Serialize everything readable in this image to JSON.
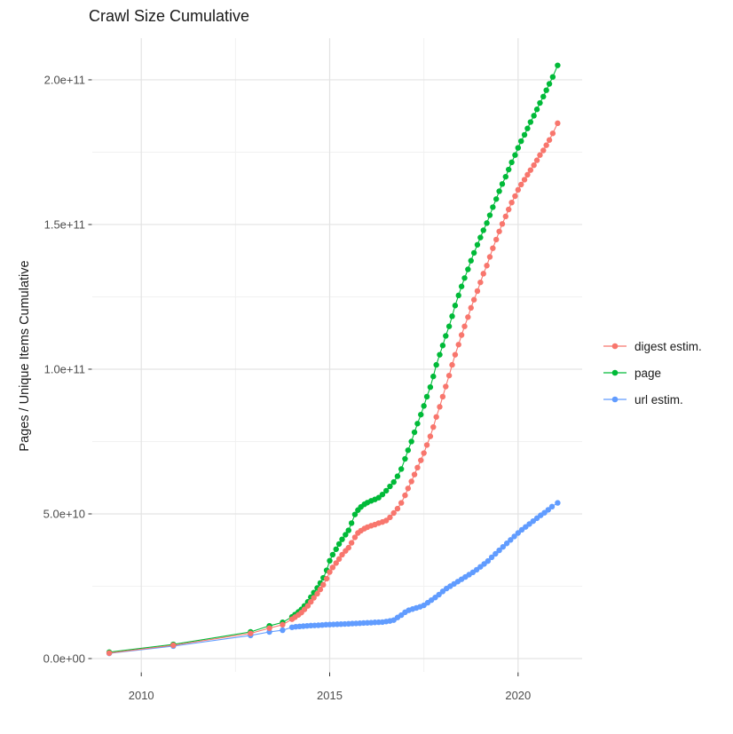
{
  "chart_data": {
    "type": "line",
    "title": "Crawl Size Cumulative",
    "xlabel": "",
    "ylabel": "Pages / Unique Items Cumulative",
    "values_unit": "billions (1e9); y axis labels use scientific notation",
    "grid": true,
    "legend_position": "right",
    "x_axis": {
      "range": [
        2008.7,
        2021.7
      ],
      "ticks": [
        {
          "label": "2010",
          "value": 2010
        },
        {
          "label": "2015",
          "value": 2015
        },
        {
          "label": "2020",
          "value": 2020
        }
      ],
      "minor": [
        2012.5,
        2017.5
      ]
    },
    "y_axis": {
      "range": [
        -4.6,
        214.4
      ],
      "ticks": [
        {
          "label": "0.0e+00",
          "value": 0
        },
        {
          "label": "5.0e+10",
          "value": 50
        },
        {
          "label": "1.0e+11",
          "value": 100
        },
        {
          "label": "1.5e+11",
          "value": 150
        },
        {
          "label": "2.0e+11",
          "value": 200
        }
      ],
      "minor": [
        25,
        75,
        125,
        175
      ]
    },
    "series": [
      {
        "name": "digest estim.",
        "color": "#F8766D",
        "points": [
          [
            2009.15,
            1.9
          ],
          [
            2010.85,
            4.6
          ],
          [
            2012.9,
            8.7
          ],
          [
            2013.4,
            10.5
          ],
          [
            2013.75,
            11.7
          ],
          [
            2014.0,
            13.6
          ],
          [
            2014.08,
            14.3
          ],
          [
            2014.17,
            15.1
          ],
          [
            2014.25,
            15.9
          ],
          [
            2014.33,
            17.0
          ],
          [
            2014.42,
            18.2
          ],
          [
            2014.5,
            19.6
          ],
          [
            2014.58,
            21.0
          ],
          [
            2014.67,
            22.4
          ],
          [
            2014.75,
            23.9
          ],
          [
            2014.83,
            25.5
          ],
          [
            2014.92,
            27.6
          ],
          [
            2015.0,
            29.9
          ],
          [
            2015.08,
            31.5
          ],
          [
            2015.17,
            33.0
          ],
          [
            2015.25,
            34.4
          ],
          [
            2015.33,
            35.9
          ],
          [
            2015.42,
            37.2
          ],
          [
            2015.5,
            38.3
          ],
          [
            2015.58,
            40.0
          ],
          [
            2015.67,
            41.9
          ],
          [
            2015.75,
            43.4
          ],
          [
            2015.83,
            44.2
          ],
          [
            2015.92,
            44.9
          ],
          [
            2016.0,
            45.4
          ],
          [
            2016.1,
            45.9
          ],
          [
            2016.2,
            46.3
          ],
          [
            2016.3,
            46.8
          ],
          [
            2016.4,
            47.2
          ],
          [
            2016.5,
            47.7
          ],
          [
            2016.6,
            48.8
          ],
          [
            2016.7,
            50.3
          ],
          [
            2016.8,
            51.8
          ],
          [
            2016.9,
            53.8
          ],
          [
            2017.0,
            56.4
          ],
          [
            2017.08,
            58.8
          ],
          [
            2017.17,
            61.2
          ],
          [
            2017.25,
            63.6
          ],
          [
            2017.33,
            66.0
          ],
          [
            2017.42,
            68.5
          ],
          [
            2017.5,
            71.0
          ],
          [
            2017.58,
            73.8
          ],
          [
            2017.67,
            76.8
          ],
          [
            2017.75,
            80.0
          ],
          [
            2017.83,
            83.5
          ],
          [
            2017.92,
            87.0
          ],
          [
            2018.0,
            90.5
          ],
          [
            2018.08,
            94.0
          ],
          [
            2018.17,
            97.8
          ],
          [
            2018.25,
            101.5
          ],
          [
            2018.33,
            105.0
          ],
          [
            2018.42,
            108.5
          ],
          [
            2018.5,
            111.8
          ],
          [
            2018.58,
            114.8
          ],
          [
            2018.67,
            118.0
          ],
          [
            2018.75,
            121.2
          ],
          [
            2018.83,
            124.0
          ],
          [
            2018.92,
            127.0
          ],
          [
            2019.0,
            130.0
          ],
          [
            2019.08,
            133.0
          ],
          [
            2019.17,
            135.8
          ],
          [
            2019.25,
            138.8
          ],
          [
            2019.33,
            141.8
          ],
          [
            2019.42,
            144.8
          ],
          [
            2019.5,
            147.6
          ],
          [
            2019.58,
            150.2
          ],
          [
            2019.67,
            152.8
          ],
          [
            2019.75,
            155.2
          ],
          [
            2019.83,
            157.6
          ],
          [
            2019.92,
            159.8
          ],
          [
            2020.0,
            162.0
          ],
          [
            2020.08,
            163.8
          ],
          [
            2020.17,
            165.5
          ],
          [
            2020.25,
            167.2
          ],
          [
            2020.33,
            168.8
          ],
          [
            2020.42,
            170.5
          ],
          [
            2020.5,
            172.2
          ],
          [
            2020.58,
            174.0
          ],
          [
            2020.67,
            175.6
          ],
          [
            2020.75,
            177.4
          ],
          [
            2020.83,
            179.2
          ],
          [
            2020.92,
            181.5
          ],
          [
            2021.05,
            185.0
          ]
        ]
      },
      {
        "name": "page",
        "color": "#00BA38",
        "points": [
          [
            2009.15,
            2.2
          ],
          [
            2010.85,
            4.9
          ],
          [
            2012.9,
            9.2
          ],
          [
            2013.4,
            11.3
          ],
          [
            2013.75,
            12.5
          ],
          [
            2014.0,
            14.4
          ],
          [
            2014.08,
            15.2
          ],
          [
            2014.17,
            16.1
          ],
          [
            2014.25,
            17.0
          ],
          [
            2014.33,
            18.2
          ],
          [
            2014.42,
            19.6
          ],
          [
            2014.5,
            21.2
          ],
          [
            2014.58,
            22.8
          ],
          [
            2014.67,
            24.4
          ],
          [
            2014.75,
            26.1
          ],
          [
            2014.83,
            27.9
          ],
          [
            2014.92,
            30.5
          ],
          [
            2015.0,
            33.8
          ],
          [
            2015.08,
            35.9
          ],
          [
            2015.17,
            37.8
          ],
          [
            2015.25,
            39.6
          ],
          [
            2015.33,
            41.2
          ],
          [
            2015.42,
            42.8
          ],
          [
            2015.5,
            44.3
          ],
          [
            2015.58,
            46.8
          ],
          [
            2015.67,
            49.8
          ],
          [
            2015.75,
            51.3
          ],
          [
            2015.83,
            52.4
          ],
          [
            2015.92,
            53.3
          ],
          [
            2016.0,
            53.9
          ],
          [
            2016.1,
            54.5
          ],
          [
            2016.2,
            55.0
          ],
          [
            2016.3,
            55.6
          ],
          [
            2016.4,
            56.7
          ],
          [
            2016.5,
            58.0
          ],
          [
            2016.6,
            59.5
          ],
          [
            2016.7,
            61.0
          ],
          [
            2016.8,
            63.0
          ],
          [
            2016.9,
            65.5
          ],
          [
            2017.0,
            69.0
          ],
          [
            2017.08,
            72.0
          ],
          [
            2017.17,
            75.0
          ],
          [
            2017.25,
            78.2
          ],
          [
            2017.33,
            81.2
          ],
          [
            2017.42,
            84.3
          ],
          [
            2017.5,
            87.3
          ],
          [
            2017.58,
            90.5
          ],
          [
            2017.67,
            93.8
          ],
          [
            2017.75,
            97.5
          ],
          [
            2017.83,
            101.5
          ],
          [
            2017.92,
            105.0
          ],
          [
            2018.0,
            108.2
          ],
          [
            2018.08,
            111.5
          ],
          [
            2018.17,
            114.8
          ],
          [
            2018.25,
            118.3
          ],
          [
            2018.33,
            122.0
          ],
          [
            2018.42,
            125.5
          ],
          [
            2018.5,
            128.6
          ],
          [
            2018.58,
            131.5
          ],
          [
            2018.67,
            134.5
          ],
          [
            2018.75,
            137.5
          ],
          [
            2018.83,
            140.2
          ],
          [
            2018.92,
            143.0
          ],
          [
            2019.0,
            145.5
          ],
          [
            2019.08,
            148.0
          ],
          [
            2019.17,
            150.5
          ],
          [
            2019.25,
            153.2
          ],
          [
            2019.33,
            156.0
          ],
          [
            2019.42,
            158.8
          ],
          [
            2019.5,
            161.5
          ],
          [
            2019.58,
            164.0
          ],
          [
            2019.67,
            166.5
          ],
          [
            2019.75,
            169.0
          ],
          [
            2019.83,
            171.5
          ],
          [
            2019.92,
            174.0
          ],
          [
            2020.0,
            176.5
          ],
          [
            2020.08,
            178.8
          ],
          [
            2020.17,
            181.0
          ],
          [
            2020.25,
            183.2
          ],
          [
            2020.33,
            185.4
          ],
          [
            2020.42,
            187.6
          ],
          [
            2020.5,
            189.8
          ],
          [
            2020.58,
            192.0
          ],
          [
            2020.67,
            194.2
          ],
          [
            2020.75,
            196.4
          ],
          [
            2020.83,
            198.6
          ],
          [
            2020.92,
            201.0
          ],
          [
            2021.05,
            205.0
          ]
        ]
      },
      {
        "name": "url estim.",
        "color": "#619CFF",
        "points": [
          [
            2009.15,
            1.8
          ],
          [
            2010.85,
            4.3
          ],
          [
            2012.9,
            8.0
          ],
          [
            2013.4,
            9.2
          ],
          [
            2013.75,
            9.8
          ],
          [
            2014.0,
            10.8
          ],
          [
            2014.1,
            11.0
          ],
          [
            2014.2,
            11.1
          ],
          [
            2014.3,
            11.2
          ],
          [
            2014.4,
            11.3
          ],
          [
            2014.5,
            11.4
          ],
          [
            2014.6,
            11.45
          ],
          [
            2014.7,
            11.5
          ],
          [
            2014.8,
            11.6
          ],
          [
            2014.9,
            11.7
          ],
          [
            2015.0,
            11.75
          ],
          [
            2015.1,
            11.8
          ],
          [
            2015.2,
            11.85
          ],
          [
            2015.3,
            11.9
          ],
          [
            2015.4,
            11.95
          ],
          [
            2015.5,
            12.0
          ],
          [
            2015.6,
            12.1
          ],
          [
            2015.7,
            12.15
          ],
          [
            2015.8,
            12.2
          ],
          [
            2015.9,
            12.3
          ],
          [
            2016.0,
            12.35
          ],
          [
            2016.1,
            12.4
          ],
          [
            2016.2,
            12.5
          ],
          [
            2016.3,
            12.55
          ],
          [
            2016.4,
            12.6
          ],
          [
            2016.5,
            12.8
          ],
          [
            2016.6,
            13.0
          ],
          [
            2016.7,
            13.3
          ],
          [
            2016.8,
            14.2
          ],
          [
            2016.9,
            15.0
          ],
          [
            2017.0,
            16.0
          ],
          [
            2017.1,
            16.7
          ],
          [
            2017.2,
            17.1
          ],
          [
            2017.3,
            17.5
          ],
          [
            2017.4,
            17.9
          ],
          [
            2017.5,
            18.4
          ],
          [
            2017.6,
            19.3
          ],
          [
            2017.7,
            20.2
          ],
          [
            2017.8,
            21.1
          ],
          [
            2017.9,
            22.1
          ],
          [
            2018.0,
            23.2
          ],
          [
            2018.1,
            24.2
          ],
          [
            2018.2,
            25.0
          ],
          [
            2018.3,
            25.8
          ],
          [
            2018.4,
            26.6
          ],
          [
            2018.5,
            27.4
          ],
          [
            2018.6,
            28.2
          ],
          [
            2018.7,
            29.0
          ],
          [
            2018.8,
            29.8
          ],
          [
            2018.9,
            30.7
          ],
          [
            2019.0,
            31.7
          ],
          [
            2019.1,
            32.7
          ],
          [
            2019.2,
            33.7
          ],
          [
            2019.3,
            35.0
          ],
          [
            2019.4,
            36.2
          ],
          [
            2019.5,
            37.4
          ],
          [
            2019.6,
            38.6
          ],
          [
            2019.7,
            39.8
          ],
          [
            2019.8,
            41.0
          ],
          [
            2019.9,
            42.2
          ],
          [
            2020.0,
            43.4
          ],
          [
            2020.1,
            44.5
          ],
          [
            2020.2,
            45.5
          ],
          [
            2020.3,
            46.5
          ],
          [
            2020.4,
            47.5
          ],
          [
            2020.5,
            48.5
          ],
          [
            2020.6,
            49.5
          ],
          [
            2020.7,
            50.4
          ],
          [
            2020.8,
            51.4
          ],
          [
            2020.9,
            52.5
          ],
          [
            2021.05,
            53.8
          ]
        ]
      }
    ]
  },
  "colors": {
    "background": "#FFFFFF",
    "grid_major": "#E3E3E3",
    "grid_minor": "#F1F1F1",
    "tick_mark": "#333333",
    "tick_label": "#4D4D4D",
    "text": "#1A1A1A"
  }
}
